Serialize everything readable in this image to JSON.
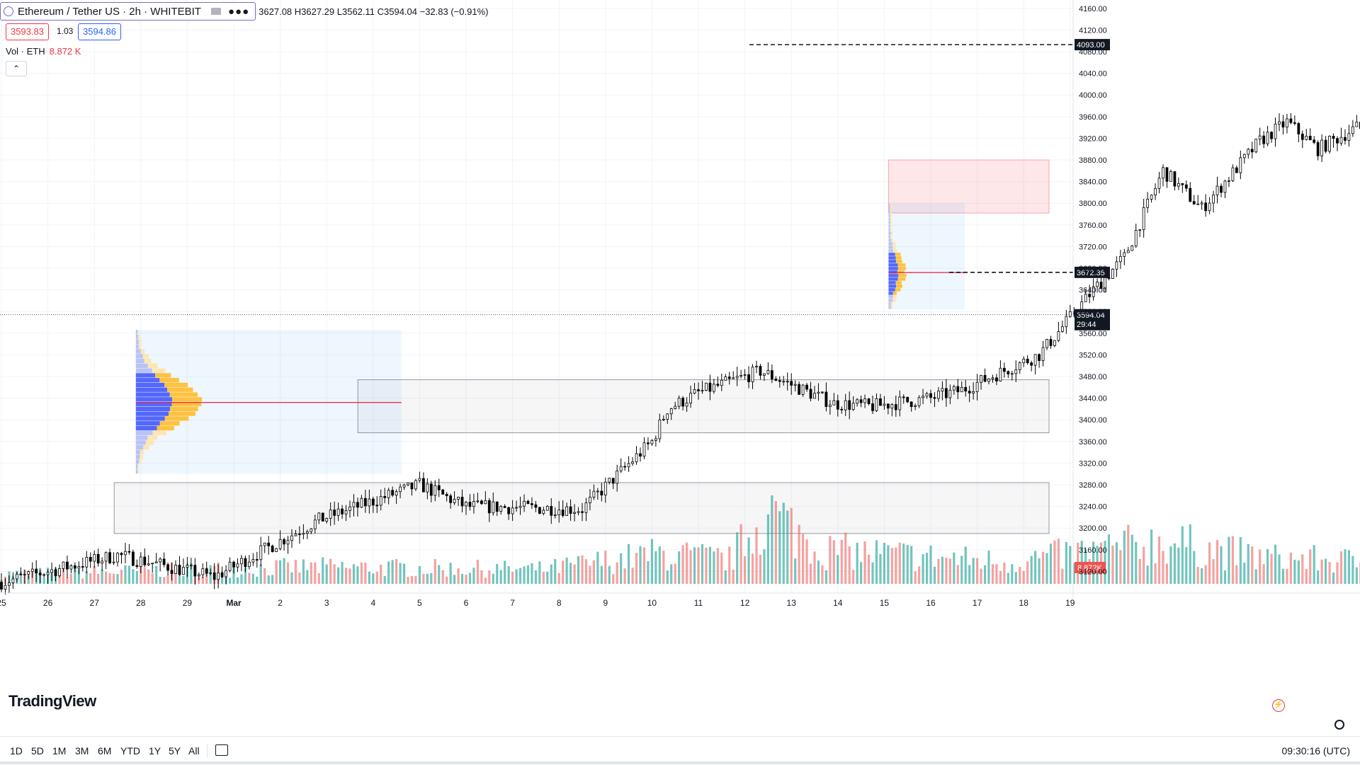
{
  "header": {
    "symbol": "Ethereum / Tether US · 2h · WHITEBIT",
    "ohlc": "3627.08 H3627.29 L3562.11 C3594.04 −32.83 (−0.91%)",
    "bid": "3593.83",
    "spread": "1.03",
    "ask": "3594.86",
    "volume_label": "Vol · ETH",
    "volume_value": "8.872 K",
    "collapse_icon": "chevron-up-icon"
  },
  "logo": "TradingView",
  "bottombar": {
    "ranges": [
      "1D",
      "5D",
      "1M",
      "3M",
      "6M",
      "YTD",
      "1Y",
      "5Y",
      "All"
    ],
    "calendar_icon": "calendar-icon",
    "time": "09:30:16 (UTC)"
  },
  "colors": {
    "up": "#26a69a",
    "down": "#ef5350",
    "candle": "#000000",
    "accent": "#2962ff",
    "zone_red": "#f23645"
  },
  "chart_data": {
    "type": "candlestick",
    "symbol": "ETHUSDT",
    "interval": "2h",
    "y_range": [
      3080,
      4165
    ],
    "y_ticks": [
      4160,
      4120,
      4080,
      4040,
      4000,
      3960,
      3920,
      3880,
      3840,
      3800,
      3760,
      3720,
      3680,
      3640,
      3600,
      3560,
      3520,
      3480,
      3440,
      3400,
      3360,
      3320,
      3280,
      3240,
      3200,
      3160,
      3120
    ],
    "x_labels": [
      "25",
      "26",
      "27",
      "28",
      "29",
      "Mar",
      "2",
      "3",
      "4",
      "5",
      "6",
      "7",
      "8",
      "9",
      "10",
      "11",
      "12",
      "13",
      "14",
      "15",
      "16",
      "17",
      "18",
      "19"
    ],
    "price_labels": [
      {
        "value": 4093.0,
        "text": "4093.00",
        "kind": "level"
      },
      {
        "value": 3672.35,
        "text": "3672.35",
        "kind": "level"
      },
      {
        "value": 3594.04,
        "text": "3594.04",
        "sub": "29:44",
        "kind": "last"
      }
    ],
    "volume_last_label": "8.872K",
    "zones": [
      {
        "kind": "supply",
        "y_top": 3880,
        "y_bottom": 3782,
        "from_label": "15",
        "to": "right"
      },
      {
        "kind": "demand",
        "y_top": 3474,
        "y_bottom": 3376,
        "from_label": "3",
        "to": "right"
      },
      {
        "kind": "demand",
        "y_top": 3284,
        "y_bottom": 3190,
        "from_label": "27",
        "to": "right"
      }
    ],
    "volume_profiles": [
      {
        "from_label": "28",
        "to_label": "4",
        "y_top": 3566,
        "y_bottom": 3300,
        "poc": 3432
      },
      {
        "from_label": "15",
        "to_label": "16",
        "y_top": 3800,
        "y_bottom": 3604,
        "poc": 3672
      }
    ],
    "anchors": [
      [
        0,
        3100
      ],
      [
        30,
        3150
      ],
      [
        55,
        3110
      ],
      [
        82,
        3215
      ],
      [
        108,
        3280
      ],
      [
        120,
        3240
      ],
      [
        150,
        3235
      ],
      [
        168,
        3360
      ],
      [
        172,
        3420
      ],
      [
        180,
        3450
      ],
      [
        196,
        3490
      ],
      [
        215,
        3430
      ],
      [
        225,
        3425
      ],
      [
        240,
        3440
      ],
      [
        248,
        3455
      ],
      [
        268,
        3520
      ],
      [
        282,
        3640
      ],
      [
        290,
        3700
      ],
      [
        300,
        3860
      ],
      [
        310,
        3790
      ],
      [
        325,
        3915
      ],
      [
        332,
        3950
      ],
      [
        340,
        3900
      ],
      [
        350,
        3940
      ],
      [
        365,
        3900
      ],
      [
        380,
        3920
      ],
      [
        390,
        3880
      ],
      [
        400,
        3890
      ],
      [
        410,
        3990
      ],
      [
        416,
        4070
      ],
      [
        420,
        4100
      ],
      [
        430,
        4060
      ],
      [
        445,
        3980
      ],
      [
        455,
        4050
      ],
      [
        470,
        4010
      ],
      [
        480,
        3970
      ],
      [
        500,
        3940
      ],
      [
        505,
        3870
      ],
      [
        510,
        3760
      ],
      [
        520,
        3720
      ],
      [
        530,
        3720
      ],
      [
        545,
        3690
      ],
      [
        552,
        3560
      ],
      [
        563,
        3460
      ],
      [
        575,
        3570
      ],
      [
        580,
        3625
      ],
      [
        590,
        3640
      ],
      [
        596,
        3594
      ]
    ],
    "volume_anchors": [
      [
        0,
        8
      ],
      [
        80,
        14
      ],
      [
        140,
        12
      ],
      [
        170,
        25
      ],
      [
        188,
        20
      ],
      [
        198,
        60
      ],
      [
        212,
        28
      ],
      [
        260,
        18
      ],
      [
        300,
        35
      ],
      [
        325,
        22
      ],
      [
        380,
        15
      ],
      [
        410,
        45
      ],
      [
        430,
        30
      ],
      [
        470,
        16
      ],
      [
        500,
        30
      ],
      [
        508,
        55
      ],
      [
        545,
        30
      ],
      [
        563,
        42
      ],
      [
        580,
        18
      ],
      [
        596,
        9
      ]
    ]
  }
}
